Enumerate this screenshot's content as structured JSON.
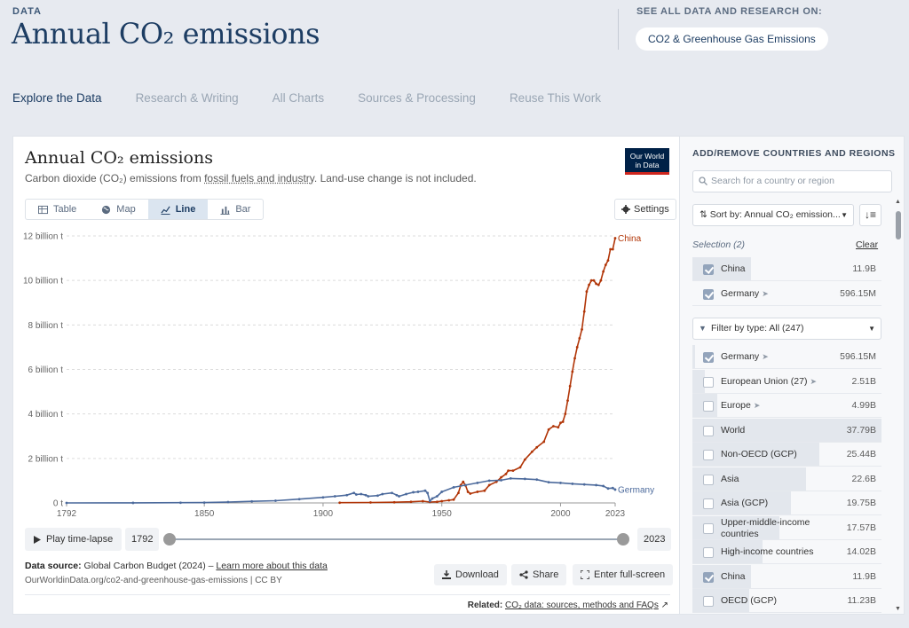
{
  "header": {
    "kicker": "DATA",
    "title": "Annual CO₂ emissions",
    "see_all_label": "SEE ALL DATA AND RESEARCH ON:",
    "topic_pill": "CO2 & Greenhouse Gas Emissions"
  },
  "tabs": [
    "Explore the Data",
    "Research & Writing",
    "All Charts",
    "Sources & Processing",
    "Reuse This Work"
  ],
  "card": {
    "title": "Annual CO₂ emissions",
    "subtitle_pre": "Carbon dioxide (CO₂) emissions from ",
    "subtitle_link": "fossil fuels and industry",
    "subtitle_post": ". Land-use change is not included.",
    "logo_line1": "Our World",
    "logo_line2": "in Data",
    "views": [
      "Table",
      "Map",
      "Line",
      "Bar"
    ],
    "settings_label": "Settings",
    "play_label": "Play time-lapse",
    "start_year": "1792",
    "end_year": "2023",
    "source_label": "Data source:",
    "source_text": " Global Carbon Budget (2024) – ",
    "source_link": "Learn more about this data",
    "url": "OurWorldinData.org/co2-and-greenhouse-gas-emissions | CC BY",
    "download_label": "Download",
    "share_label": "Share",
    "fullscreen_label": "Enter full-screen",
    "related_label": "Related:",
    "related_link": "CO₂ data: sources, methods and FAQs"
  },
  "chart_data": {
    "type": "line",
    "title": "Annual CO₂ emissions",
    "ylim": [
      0,
      12
    ],
    "xlim": [
      1792,
      2023
    ],
    "y_ticks": [
      0,
      2,
      4,
      6,
      8,
      10,
      12
    ],
    "y_tick_labels": [
      "0 t",
      "2 billion t",
      "4 billion t",
      "6 billion t",
      "8 billion t",
      "10 billion t",
      "12 billion t"
    ],
    "x_ticks": [
      1792,
      1850,
      1900,
      1950,
      2000,
      2023
    ],
    "grid": true,
    "colors": {
      "China": "#b13507",
      "Germany": "#4c6a9c"
    },
    "series": [
      {
        "name": "China",
        "x": [
          1907,
          1920,
          1930,
          1937,
          1942,
          1945,
          1948,
          1950,
          1953,
          1955,
          1957,
          1958,
          1959,
          1960,
          1961,
          1962,
          1965,
          1968,
          1970,
          1973,
          1975,
          1977,
          1978,
          1980,
          1983,
          1985,
          1988,
          1990,
          1993,
          1995,
          1997,
          1999,
          2000,
          2001,
          2002,
          2003,
          2004,
          2005,
          2006,
          2007,
          2008,
          2009,
          2010,
          2011,
          2012,
          2013,
          2014,
          2015,
          2016,
          2017,
          2018,
          2019,
          2020,
          2021,
          2022,
          2023
        ],
        "y": [
          0.01,
          0.02,
          0.03,
          0.05,
          0.08,
          0.04,
          0.05,
          0.08,
          0.12,
          0.15,
          0.45,
          0.8,
          0.95,
          0.78,
          0.5,
          0.42,
          0.5,
          0.55,
          0.8,
          0.95,
          1.15,
          1.3,
          1.45,
          1.45,
          1.6,
          1.95,
          2.3,
          2.5,
          2.75,
          3.3,
          3.45,
          3.4,
          3.6,
          3.65,
          4.0,
          4.6,
          5.25,
          5.9,
          6.5,
          7.0,
          7.4,
          7.8,
          8.6,
          9.5,
          9.8,
          10.0,
          10.0,
          9.85,
          9.8,
          10.0,
          10.4,
          10.7,
          10.9,
          11.4,
          11.4,
          11.9
        ]
      },
      {
        "name": "Germany",
        "x": [
          1792,
          1820,
          1840,
          1850,
          1860,
          1870,
          1880,
          1890,
          1900,
          1905,
          1910,
          1913,
          1914,
          1916,
          1918,
          1919,
          1923,
          1925,
          1929,
          1931,
          1932,
          1935,
          1938,
          1940,
          1943,
          1944,
          1945,
          1946,
          1948,
          1950,
          1955,
          1960,
          1965,
          1970,
          1975,
          1979,
          1985,
          1990,
          1995,
          2000,
          2005,
          2010,
          2015,
          2018,
          2020,
          2022,
          2023
        ],
        "y": [
          0.0,
          0.002,
          0.01,
          0.015,
          0.04,
          0.07,
          0.1,
          0.17,
          0.25,
          0.3,
          0.35,
          0.45,
          0.38,
          0.4,
          0.35,
          0.3,
          0.33,
          0.4,
          0.45,
          0.35,
          0.3,
          0.4,
          0.48,
          0.5,
          0.55,
          0.45,
          0.08,
          0.2,
          0.3,
          0.5,
          0.7,
          0.8,
          0.9,
          1.0,
          1.02,
          1.1,
          1.08,
          1.05,
          0.93,
          0.9,
          0.86,
          0.83,
          0.8,
          0.76,
          0.65,
          0.67,
          0.6
        ]
      }
    ]
  },
  "panel": {
    "heading": "ADD/REMOVE COUNTRIES AND REGIONS",
    "search_placeholder": "Search for a country or region",
    "sort_label": "Sort by: Annual CO₂ emission...",
    "selection_label": "Selection (2)",
    "clear_label": "Clear",
    "selected": [
      {
        "name": "China",
        "value": "11.9B",
        "checked": true,
        "frac": 0.31,
        "arrow": false
      },
      {
        "name": "Germany",
        "value": "596.15M",
        "checked": true,
        "frac": 0.0,
        "arrow": true
      }
    ],
    "filter_label": "Filter by type: All (247)",
    "entities": [
      {
        "name": "Germany",
        "value": "596.15M",
        "checked": true,
        "frac": 0.016,
        "arrow": true
      },
      {
        "name": "European Union (27)",
        "value": "2.51B",
        "checked": false,
        "frac": 0.066,
        "arrow": true
      },
      {
        "name": "Europe",
        "value": "4.99B",
        "checked": false,
        "frac": 0.13,
        "arrow": true
      },
      {
        "name": "World",
        "value": "37.79B",
        "checked": false,
        "frac": 1.0,
        "arrow": false
      },
      {
        "name": "Non-OECD (GCP)",
        "value": "25.44B",
        "checked": false,
        "frac": 0.67,
        "arrow": false
      },
      {
        "name": "Asia",
        "value": "22.6B",
        "checked": false,
        "frac": 0.6,
        "arrow": false
      },
      {
        "name": "Asia (GCP)",
        "value": "19.75B",
        "checked": false,
        "frac": 0.52,
        "arrow": false
      },
      {
        "name": "Upper-middle-income countries",
        "value": "17.57B",
        "checked": false,
        "frac": 0.46,
        "arrow": false
      },
      {
        "name": "High-income countries",
        "value": "14.02B",
        "checked": false,
        "frac": 0.37,
        "arrow": false
      },
      {
        "name": "China",
        "value": "11.9B",
        "checked": true,
        "frac": 0.31,
        "arrow": false
      },
      {
        "name": "OECD (GCP)",
        "value": "11.23B",
        "checked": false,
        "frac": 0.3,
        "arrow": false
      }
    ]
  }
}
